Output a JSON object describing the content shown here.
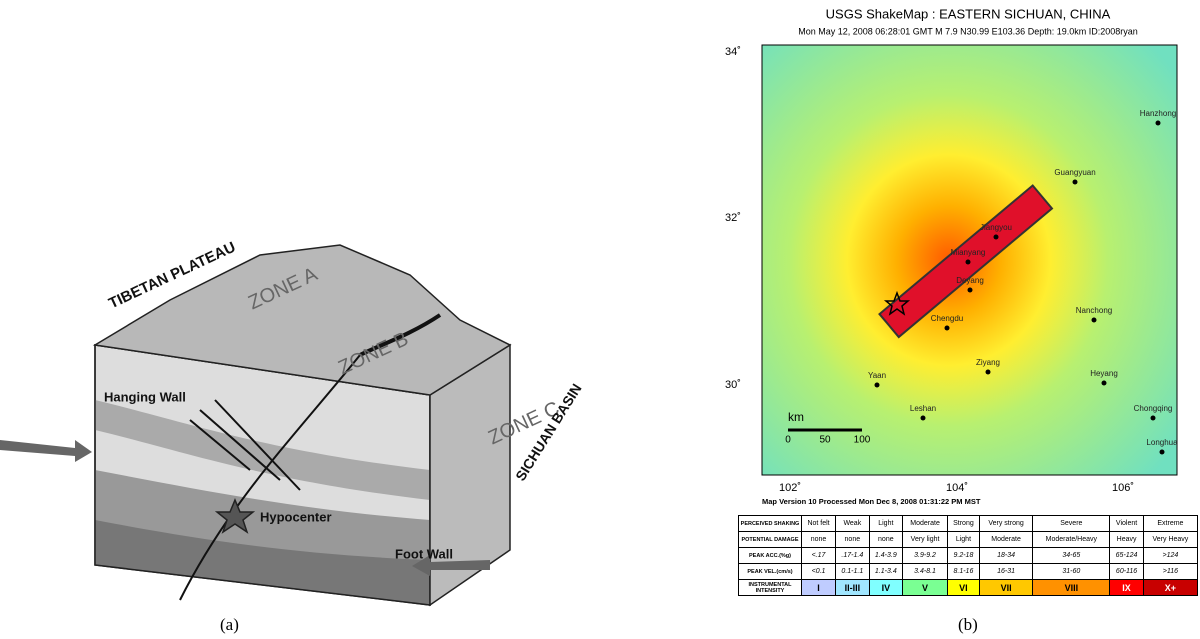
{
  "diagram": {
    "labels": [
      "TIBETAN PLATEAU",
      "ZONE A",
      "ZONE B",
      "ZONE C",
      "SICHUAN BASIN",
      "Hanging Wall",
      "Hypocenter",
      "Foot Wall"
    ],
    "caption": "(a)"
  },
  "map": {
    "title": "USGS ShakeMap : EASTERN SICHUAN, CHINA",
    "subtitle": "Mon May 12, 2008 06:28:01 GMT   M 7.9   N30.99 E103.36   Depth: 19.0km   ID:2008ryan",
    "lat_labels": [
      "34˚",
      "32˚",
      "30˚"
    ],
    "lon_labels": [
      "102˚",
      "104˚",
      "106˚"
    ],
    "cities": [
      "Hanzhong",
      "Guangyuan",
      "Jiangyou",
      "Mianyang",
      "Deyang",
      "Chengdu",
      "Nanchong",
      "Ziyang",
      "Yaan",
      "Heyang",
      "Leshan",
      "Chongqing",
      "Longhua"
    ],
    "scale": [
      "km",
      "0",
      "50",
      "100"
    ],
    "note": "Map Version 10 Processed Mon Dec 8, 2008 01:31:22 PM MST",
    "caption": "(b)"
  },
  "table": {
    "rows": [
      [
        "PERCEIVED SHAKING",
        "Not felt",
        "Weak",
        "Light",
        "Moderate",
        "Strong",
        "Very strong",
        "Severe",
        "Violent",
        "Extreme"
      ],
      [
        "POTENTIAL DAMAGE",
        "none",
        "none",
        "none",
        "Very light",
        "Light",
        "Moderate",
        "Moderate/Heavy",
        "Heavy",
        "Very Heavy"
      ],
      [
        "PEAK ACC.(%g)",
        "<.17",
        ".17-1.4",
        "1.4-3.9",
        "3.9-9.2",
        "9.2-18",
        "18-34",
        "34-65",
        "65-124",
        ">124"
      ],
      [
        "PEAK VEL.(cm/s)",
        "<0.1",
        "0.1-1.1",
        "1.1-3.4",
        "3.4-8.1",
        "8.1-16",
        "16-31",
        "31-60",
        "60-116",
        ">116"
      ],
      [
        "INSTRUMENTAL INTENSITY",
        "I",
        "II-III",
        "IV",
        "V",
        "VI",
        "VII",
        "VIII",
        "IX",
        "X+"
      ]
    ]
  }
}
